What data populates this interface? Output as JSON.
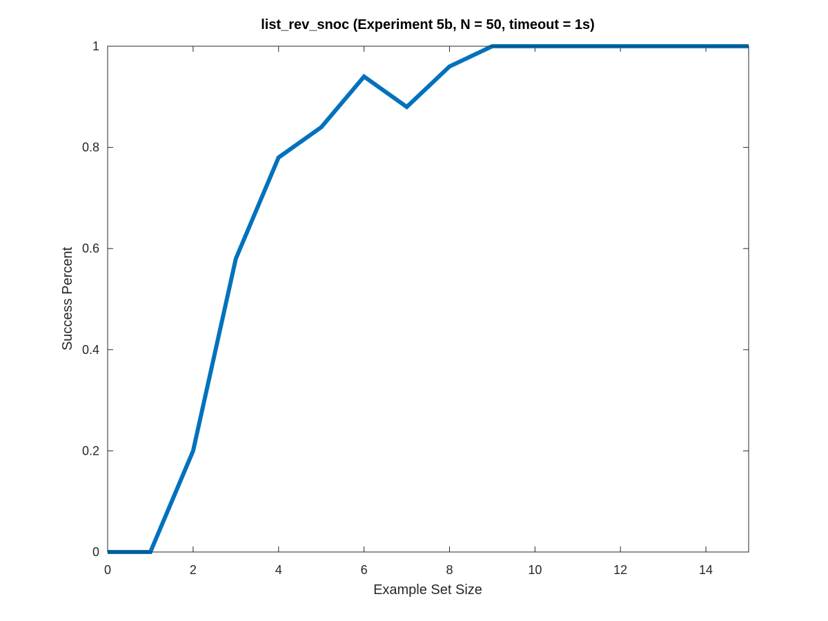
{
  "chart_data": {
    "type": "line",
    "title": "list_rev_snoc (Experiment 5b, N = 50, timeout = 1s)",
    "xlabel": "Example Set Size",
    "ylabel": "Success Percent",
    "xlim": [
      0,
      15
    ],
    "ylim": [
      0,
      1
    ],
    "xticks": [
      0,
      2,
      4,
      6,
      8,
      10,
      12,
      14
    ],
    "xtick_labels": [
      "0",
      "2",
      "4",
      "6",
      "8",
      "10",
      "12",
      "14"
    ],
    "yticks": [
      0,
      0.2,
      0.4,
      0.6,
      0.8,
      1
    ],
    "ytick_labels": [
      "0",
      "0.2",
      "0.4",
      "0.6",
      "0.8",
      "1"
    ],
    "grid": false,
    "series": [
      {
        "color": "#0072BD",
        "x": [
          0,
          1,
          2,
          3,
          4,
          5,
          6,
          7,
          8,
          9,
          10,
          11,
          12,
          13,
          14,
          15
        ],
        "y": [
          0,
          0,
          0.2,
          0.58,
          0.78,
          0.84,
          0.94,
          0.88,
          0.96,
          1,
          1,
          1,
          1,
          1,
          1,
          1
        ]
      }
    ]
  }
}
